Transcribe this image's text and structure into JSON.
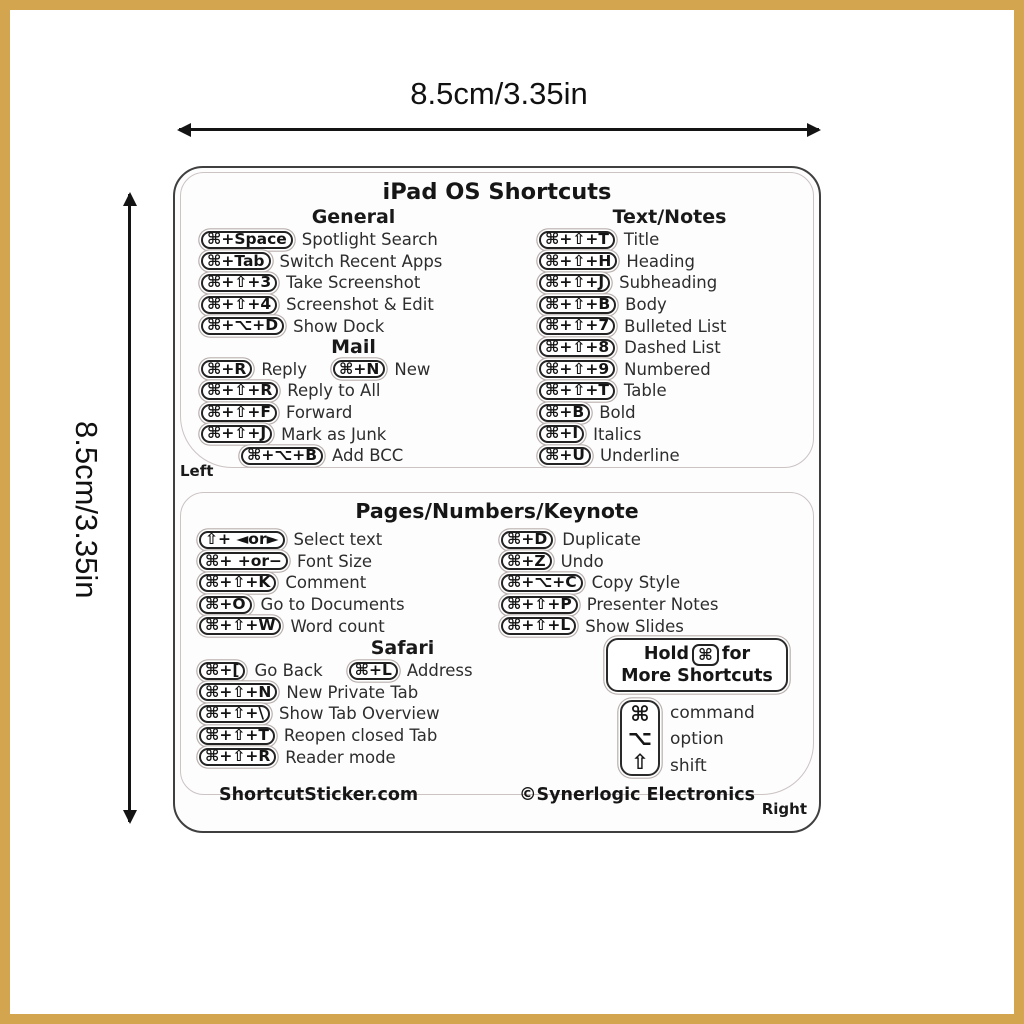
{
  "colors": {
    "frame_gold": "#D2A54E",
    "ink": "#222222"
  },
  "dims": {
    "width_label": "8.5cm/3.35in",
    "height_label": "8.5cm/3.35in"
  },
  "title": "iPad OS Shortcuts",
  "sheet": {
    "left_tag": "Left",
    "right_tag": "Right"
  },
  "general": {
    "header": "General",
    "rows": [
      {
        "k": "⌘+Space",
        "d": "Spotlight Search"
      },
      {
        "k": "⌘+Tab",
        "d": "Switch Recent Apps"
      },
      {
        "k": "⌘+⇧+3",
        "d": "Take Screenshot"
      },
      {
        "k": "⌘+⇧+4",
        "d": "Screenshot & Edit"
      },
      {
        "k": "⌘+⌥+D",
        "d": "Show Dock"
      }
    ]
  },
  "mail": {
    "header": "Mail",
    "rows": [
      {
        "k": "⌘+R",
        "d": "Reply",
        "k2": "⌘+N",
        "d2": "New"
      },
      {
        "k": "⌘+⇧+R",
        "d": "Reply to All"
      },
      {
        "k": "⌘+⇧+F",
        "d": "Forward"
      },
      {
        "k": "⌘+⇧+J",
        "d": "Mark as Junk"
      },
      {
        "k": "⌘+⌥+B",
        "d": "Add BCC"
      }
    ]
  },
  "textnotes": {
    "header": "Text/Notes",
    "rows": [
      {
        "k": "⌘+⇧+T",
        "d": "Title"
      },
      {
        "k": "⌘+⇧+H",
        "d": "Heading"
      },
      {
        "k": "⌘+⇧+J",
        "d": "Subheading"
      },
      {
        "k": "⌘+⇧+B",
        "d": "Body"
      },
      {
        "k": "⌘+⇧+7",
        "d": "Bulleted List"
      },
      {
        "k": "⌘+⇧+8",
        "d": "Dashed List"
      },
      {
        "k": "⌘+⇧+9",
        "d": "Numbered"
      },
      {
        "k": "⌘+⇧+T",
        "d": "Table"
      },
      {
        "k": "⌘+B",
        "d": "Bold"
      },
      {
        "k": "⌘+I",
        "d": "Italics"
      },
      {
        "k": "⌘+U",
        "d": "Underline"
      }
    ]
  },
  "pages": {
    "header": "Pages/Numbers/Keynote",
    "left": [
      {
        "k": "⇧+ ◄or►",
        "d": "Select text"
      },
      {
        "k": "⌘+ +or−",
        "d": "Font Size"
      },
      {
        "k": "⌘+⇧+K",
        "d": "Comment"
      },
      {
        "k": "⌘+O",
        "d": "Go to Documents"
      },
      {
        "k": "⌘+⇧+W",
        "d": "Word count"
      }
    ],
    "right": [
      {
        "k": "⌘+D",
        "d": "Duplicate"
      },
      {
        "k": "⌘+Z",
        "d": "Undo"
      },
      {
        "k": "⌘+⌥+C",
        "d": "Copy Style"
      },
      {
        "k": "⌘+⇧+P",
        "d": "Presenter Notes"
      },
      {
        "k": "⌘+⇧+L",
        "d": "Show Slides"
      }
    ]
  },
  "safari": {
    "header": "Safari",
    "rows": [
      {
        "k": "⌘+[",
        "d": "Go Back",
        "k2": "⌘+L",
        "d2": "Address"
      },
      {
        "k": "⌘+⇧+N",
        "d": "New Private Tab"
      },
      {
        "k": "⌘+⇧+\\",
        "d": "Show Tab Overview"
      },
      {
        "k": "⌘+⇧+T",
        "d": "Reopen closed Tab"
      },
      {
        "k": "⌘+⇧+R",
        "d": "Reader mode"
      }
    ]
  },
  "hold": {
    "word1": "Hold",
    "key": "⌘",
    "word2": "for",
    "line2": "More Shortcuts"
  },
  "legend": {
    "items": [
      {
        "key": "⌘",
        "label": "command"
      },
      {
        "key": "⌥",
        "label": "option"
      },
      {
        "key": "⇧",
        "label": "shift"
      }
    ]
  },
  "footer": {
    "left": "ShortcutSticker.com",
    "right": "©Synerlogic Electronics"
  }
}
